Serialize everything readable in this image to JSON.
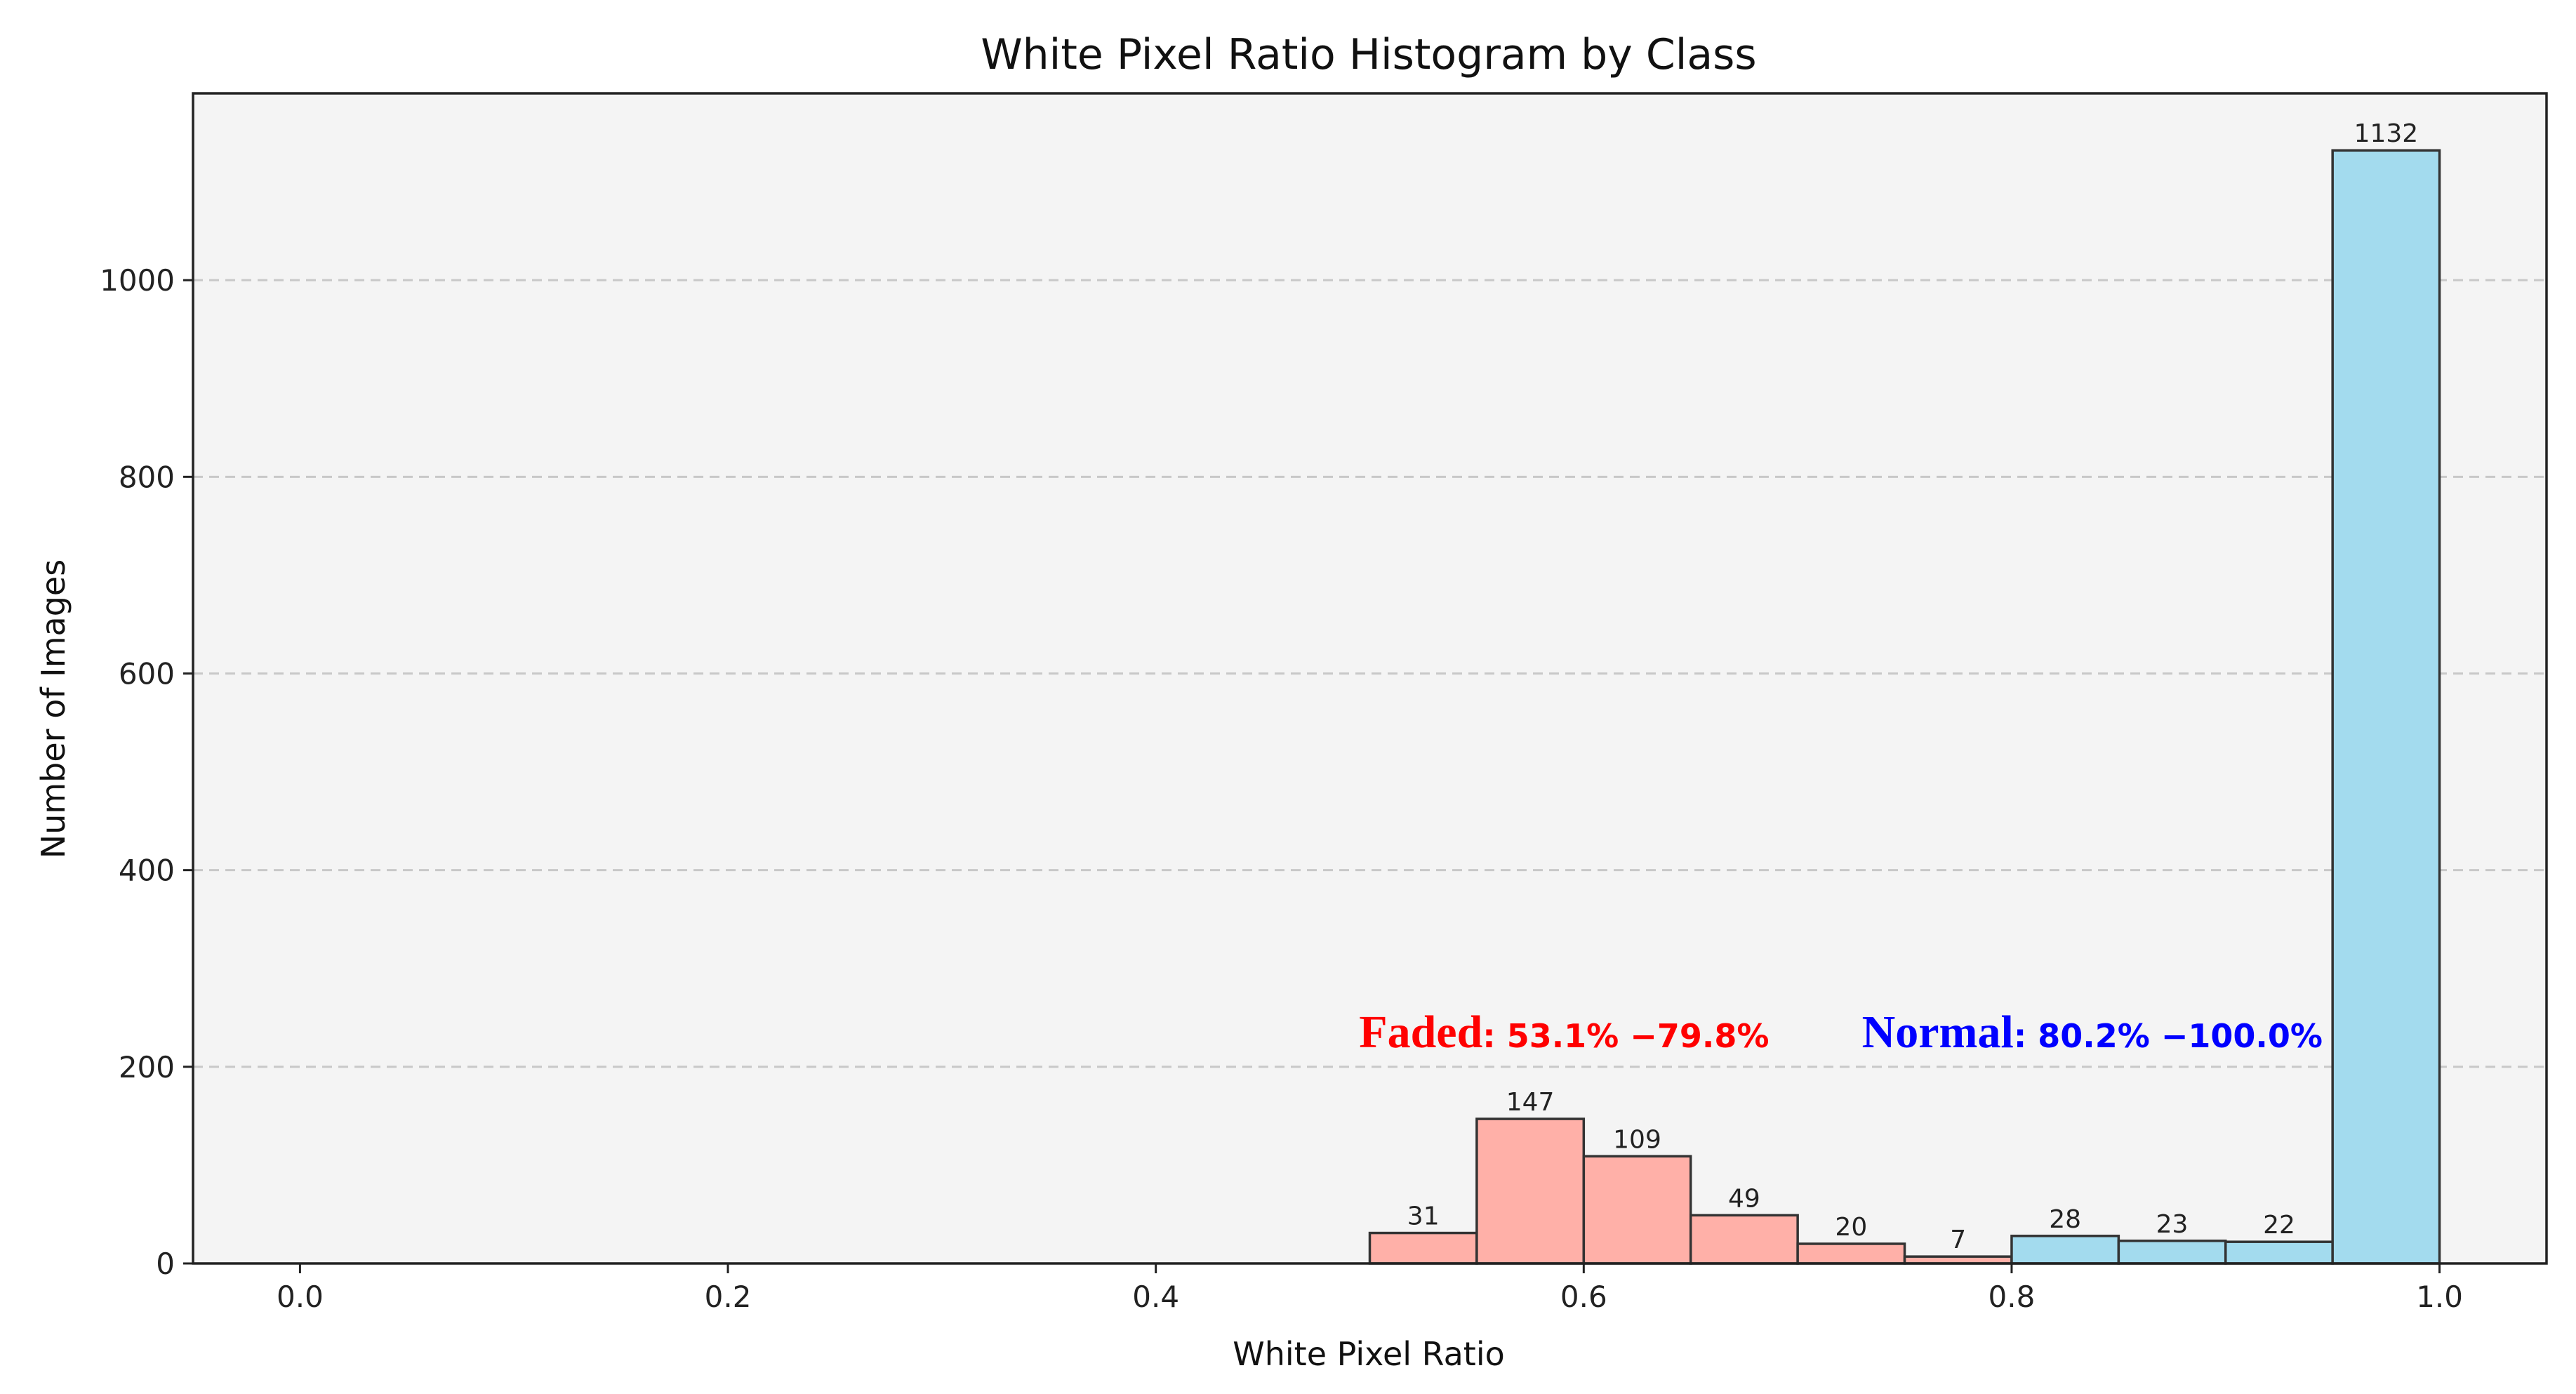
{
  "chart_data": {
    "type": "bar",
    "title": "White Pixel Ratio Histogram by Class",
    "xlabel": "White Pixel Ratio",
    "ylabel": "Number of Images",
    "xlim": [
      -0.05,
      1.05
    ],
    "ylim": [
      0,
      1190
    ],
    "x_ticks": [
      0.0,
      0.2,
      0.4,
      0.6,
      0.8,
      1.0
    ],
    "x_tick_labels": [
      "0.0",
      "0.2",
      "0.4",
      "0.6",
      "0.8",
      "1.0"
    ],
    "y_ticks": [
      0,
      200,
      400,
      600,
      800,
      1000
    ],
    "y_tick_labels": [
      "0",
      "200",
      "400",
      "600",
      "800",
      "1000"
    ],
    "grid": "y-dashed",
    "series": [
      {
        "class": "faded",
        "color": "#ffb0a8",
        "bins": [
          {
            "x0": 0.5,
            "x1": 0.55,
            "value": 31
          },
          {
            "x0": 0.55,
            "x1": 0.6,
            "value": 147
          },
          {
            "x0": 0.6,
            "x1": 0.65,
            "value": 109
          },
          {
            "x0": 0.65,
            "x1": 0.7,
            "value": 49
          },
          {
            "x0": 0.7,
            "x1": 0.75,
            "value": 20
          },
          {
            "x0": 0.75,
            "x1": 0.8,
            "value": 7
          }
        ]
      },
      {
        "class": "normal",
        "color": "#a3dbee",
        "bins": [
          {
            "x0": 0.8,
            "x1": 0.85,
            "value": 28
          },
          {
            "x0": 0.85,
            "x1": 0.9,
            "value": 23
          },
          {
            "x0": 0.9,
            "x1": 0.95,
            "value": 22
          },
          {
            "x0": 0.95,
            "x1": 1.0,
            "value": 1132
          }
        ]
      }
    ],
    "annotations": [
      {
        "label": "Faded",
        "range_text": ": 53.1% −79.8%",
        "color": "#ff0000",
        "x": 0.495,
        "y": 220
      },
      {
        "label": "Normal",
        "range_text": ": 80.2% −100.0%",
        "color": "#0000ff",
        "x": 0.73,
        "y": 220
      }
    ]
  }
}
